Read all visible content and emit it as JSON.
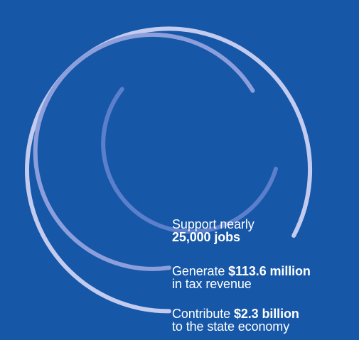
{
  "rings": {
    "outer_color": "#c3ccef",
    "middle_color": "#8c9fdb",
    "inner_color": "#5b7fcb",
    "background_color": "#1657a8"
  },
  "stats": [
    {
      "prefix": "Support nearly",
      "highlight": "25,000 jobs",
      "suffix": ""
    },
    {
      "prefix": "Generate ",
      "highlight": "$113.6 million",
      "suffix": "in tax revenue"
    },
    {
      "prefix": "Contribute ",
      "highlight": "$2.3 billion",
      "suffix": "to the state economy"
    }
  ]
}
